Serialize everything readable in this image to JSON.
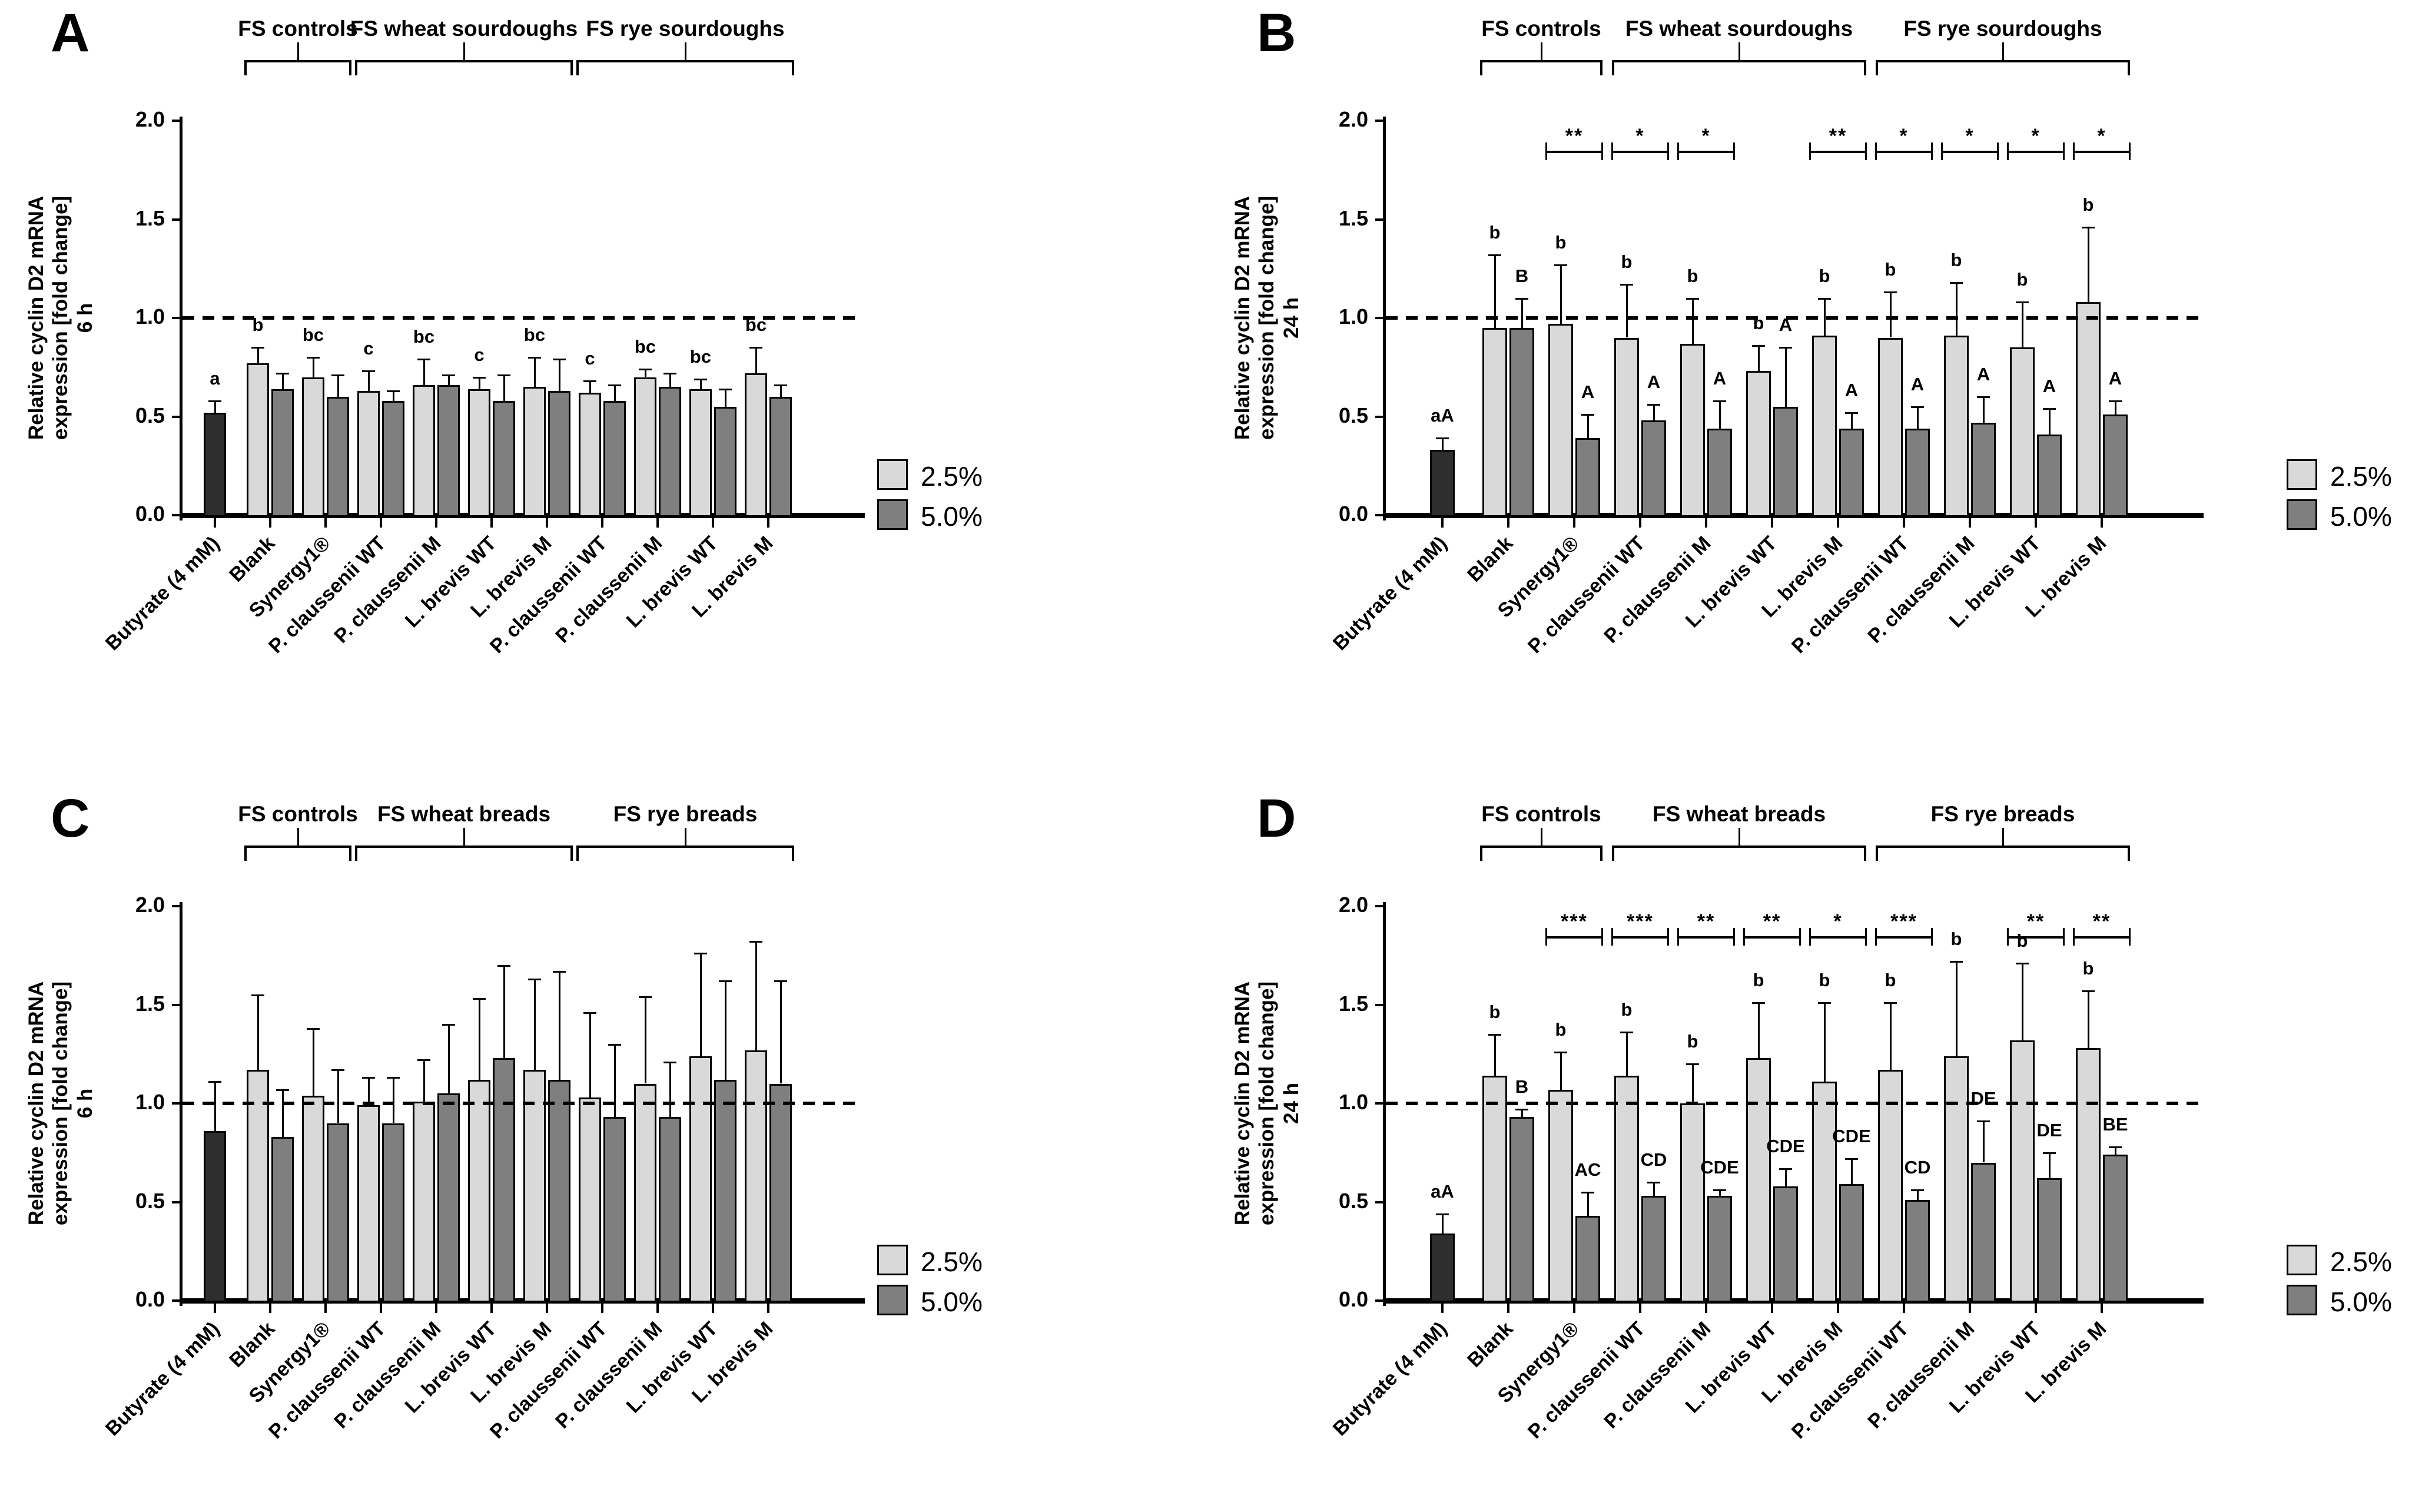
{
  "chart_data": {
    "type": "bar",
    "title": "",
    "ylabel_line1": "Relative cyclin D2 mRNA",
    "ylabel_line2": "expression [fold change]",
    "ylim": [
      0,
      2.0
    ],
    "ytick_labels": [
      "0.0",
      "0.5",
      "1.0",
      "1.5",
      "2.0"
    ],
    "ytick_values": [
      0.0,
      0.5,
      1.0,
      1.5,
      2.0
    ],
    "reference_line": 1.0,
    "grid": false,
    "legend": {
      "position": "right",
      "items": [
        {
          "label": "2.5%",
          "color": "#d9d9d9"
        },
        {
          "label": "5.0%",
          "color": "#7f7f7f"
        }
      ]
    },
    "colors": {
      "butyrate": "#2e2e2e",
      "light": "#d9d9d9",
      "dark": "#7f7f7f",
      "axis": "#000000"
    },
    "categories": [
      "Butyrate (4 mM)",
      "Blank",
      "Synergy1®",
      "P. claussenii WT",
      "P. claussenii M",
      "L. brevis WT",
      "L. brevis M",
      "P. claussenii WT",
      "P. claussenii M",
      "L. brevis WT",
      "L. brevis M"
    ],
    "panels": [
      {
        "id": "A",
        "time": "6 h",
        "group_titles": [
          {
            "label": "FS controls",
            "start": 1,
            "end": 2
          },
          {
            "label": "FS wheat sourdoughs",
            "start": 3,
            "end": 6
          },
          {
            "label": "FS rye sourdoughs",
            "start": 7,
            "end": 10
          }
        ],
        "groups": [
          {
            "bars": [
              {
                "s": "b",
                "v": 0.52,
                "e": 0.06,
                "letter": "a"
              }
            ]
          },
          {
            "bars": [
              {
                "s": "l",
                "v": 0.77,
                "e": 0.08,
                "letter": "b"
              },
              {
                "s": "d",
                "v": 0.64,
                "e": 0.08
              }
            ]
          },
          {
            "bars": [
              {
                "s": "l",
                "v": 0.7,
                "e": 0.1,
                "letter": "bc"
              },
              {
                "s": "d",
                "v": 0.6,
                "e": 0.11
              }
            ]
          },
          {
            "bars": [
              {
                "s": "l",
                "v": 0.63,
                "e": 0.1,
                "letter": "c"
              },
              {
                "s": "d",
                "v": 0.58,
                "e": 0.05
              }
            ]
          },
          {
            "bars": [
              {
                "s": "l",
                "v": 0.66,
                "e": 0.13,
                "letter": "bc"
              },
              {
                "s": "d",
                "v": 0.66,
                "e": 0.05
              }
            ]
          },
          {
            "bars": [
              {
                "s": "l",
                "v": 0.64,
                "e": 0.06,
                "letter": "c"
              },
              {
                "s": "d",
                "v": 0.58,
                "e": 0.13
              }
            ]
          },
          {
            "bars": [
              {
                "s": "l",
                "v": 0.65,
                "e": 0.15,
                "letter": "bc"
              },
              {
                "s": "d",
                "v": 0.63,
                "e": 0.16
              }
            ]
          },
          {
            "bars": [
              {
                "s": "l",
                "v": 0.62,
                "e": 0.06,
                "letter": "c"
              },
              {
                "s": "d",
                "v": 0.58,
                "e": 0.08
              }
            ]
          },
          {
            "bars": [
              {
                "s": "l",
                "v": 0.7,
                "e": 0.04,
                "letter": "bc"
              },
              {
                "s": "d",
                "v": 0.65,
                "e": 0.07
              }
            ]
          },
          {
            "bars": [
              {
                "s": "l",
                "v": 0.64,
                "e": 0.05,
                "letter": "bc"
              },
              {
                "s": "d",
                "v": 0.55,
                "e": 0.09
              }
            ]
          },
          {
            "bars": [
              {
                "s": "l",
                "v": 0.72,
                "e": 0.13,
                "letter": "bc"
              },
              {
                "s": "d",
                "v": 0.6,
                "e": 0.06
              }
            ]
          }
        ],
        "significance": []
      },
      {
        "id": "B",
        "time": "24 h",
        "group_titles": [
          {
            "label": "FS controls",
            "start": 1,
            "end": 2
          },
          {
            "label": "FS wheat sourdoughs",
            "start": 3,
            "end": 6
          },
          {
            "label": "FS rye sourdoughs",
            "start": 7,
            "end": 10
          }
        ],
        "groups": [
          {
            "bars": [
              {
                "s": "b",
                "v": 0.33,
                "e": 0.06,
                "letter": "aA"
              }
            ]
          },
          {
            "bars": [
              {
                "s": "l",
                "v": 0.95,
                "e": 0.37,
                "letter": "b"
              },
              {
                "s": "d",
                "v": 0.95,
                "e": 0.15,
                "letter": "B"
              }
            ]
          },
          {
            "bars": [
              {
                "s": "l",
                "v": 0.97,
                "e": 0.3,
                "letter": "b"
              },
              {
                "s": "d",
                "v": 0.39,
                "e": 0.12,
                "letter": "A"
              }
            ]
          },
          {
            "bars": [
              {
                "s": "l",
                "v": 0.9,
                "e": 0.27,
                "letter": "b"
              },
              {
                "s": "d",
                "v": 0.48,
                "e": 0.08,
                "letter": "A"
              }
            ]
          },
          {
            "bars": [
              {
                "s": "l",
                "v": 0.87,
                "e": 0.23,
                "letter": "b"
              },
              {
                "s": "d",
                "v": 0.44,
                "e": 0.14,
                "letter": "A"
              }
            ]
          },
          {
            "bars": [
              {
                "s": "l",
                "v": 0.73,
                "e": 0.13,
                "letter": "b"
              },
              {
                "s": "d",
                "v": 0.55,
                "e": 0.3,
                "letter": "A"
              }
            ]
          },
          {
            "bars": [
              {
                "s": "l",
                "v": 0.91,
                "e": 0.19,
                "letter": "b"
              },
              {
                "s": "d",
                "v": 0.44,
                "e": 0.08,
                "letter": "A"
              }
            ]
          },
          {
            "bars": [
              {
                "s": "l",
                "v": 0.9,
                "e": 0.23,
                "letter": "b"
              },
              {
                "s": "d",
                "v": 0.44,
                "e": 0.11,
                "letter": "A"
              }
            ]
          },
          {
            "bars": [
              {
                "s": "l",
                "v": 0.91,
                "e": 0.27,
                "letter": "b"
              },
              {
                "s": "d",
                "v": 0.47,
                "e": 0.13,
                "letter": "A"
              }
            ]
          },
          {
            "bars": [
              {
                "s": "l",
                "v": 0.85,
                "e": 0.23,
                "letter": "b"
              },
              {
                "s": "d",
                "v": 0.41,
                "e": 0.13,
                "letter": "A"
              }
            ]
          },
          {
            "bars": [
              {
                "s": "l",
                "v": 1.08,
                "e": 0.38,
                "letter": "b"
              },
              {
                "s": "d",
                "v": 0.51,
                "e": 0.07,
                "letter": "A"
              }
            ]
          }
        ],
        "significance": [
          {
            "group": 2,
            "stars": "**"
          },
          {
            "group": 3,
            "stars": "*"
          },
          {
            "group": 4,
            "stars": "*"
          },
          {
            "group": 6,
            "stars": "**"
          },
          {
            "group": 7,
            "stars": "*"
          },
          {
            "group": 8,
            "stars": "*"
          },
          {
            "group": 9,
            "stars": "*"
          },
          {
            "group": 10,
            "stars": "*"
          }
        ]
      },
      {
        "id": "C",
        "time": "6 h",
        "group_titles": [
          {
            "label": "FS controls",
            "start": 1,
            "end": 2
          },
          {
            "label": "FS wheat breads",
            "start": 3,
            "end": 6
          },
          {
            "label": "FS rye breads",
            "start": 7,
            "end": 10
          }
        ],
        "groups": [
          {
            "bars": [
              {
                "s": "b",
                "v": 0.86,
                "e": 0.25
              }
            ]
          },
          {
            "bars": [
              {
                "s": "l",
                "v": 1.17,
                "e": 0.38
              },
              {
                "s": "d",
                "v": 0.83,
                "e": 0.24
              }
            ]
          },
          {
            "bars": [
              {
                "s": "l",
                "v": 1.04,
                "e": 0.34
              },
              {
                "s": "d",
                "v": 0.9,
                "e": 0.27
              }
            ]
          },
          {
            "bars": [
              {
                "s": "l",
                "v": 0.99,
                "e": 0.14
              },
              {
                "s": "d",
                "v": 0.9,
                "e": 0.23
              }
            ]
          },
          {
            "bars": [
              {
                "s": "l",
                "v": 1.01,
                "e": 0.21
              },
              {
                "s": "d",
                "v": 1.05,
                "e": 0.35
              }
            ]
          },
          {
            "bars": [
              {
                "s": "l",
                "v": 1.12,
                "e": 0.41
              },
              {
                "s": "d",
                "v": 1.23,
                "e": 0.47
              }
            ]
          },
          {
            "bars": [
              {
                "s": "l",
                "v": 1.17,
                "e": 0.46
              },
              {
                "s": "d",
                "v": 1.12,
                "e": 0.55
              }
            ]
          },
          {
            "bars": [
              {
                "s": "l",
                "v": 1.03,
                "e": 0.43
              },
              {
                "s": "d",
                "v": 0.93,
                "e": 0.37
              }
            ]
          },
          {
            "bars": [
              {
                "s": "l",
                "v": 1.1,
                "e": 0.44
              },
              {
                "s": "d",
                "v": 0.93,
                "e": 0.28
              }
            ]
          },
          {
            "bars": [
              {
                "s": "l",
                "v": 1.24,
                "e": 0.52
              },
              {
                "s": "d",
                "v": 1.12,
                "e": 0.5
              }
            ]
          },
          {
            "bars": [
              {
                "s": "l",
                "v": 1.27,
                "e": 0.55
              },
              {
                "s": "d",
                "v": 1.1,
                "e": 0.52
              }
            ]
          }
        ],
        "significance": []
      },
      {
        "id": "D",
        "time": "24 h",
        "group_titles": [
          {
            "label": "FS controls",
            "start": 1,
            "end": 2
          },
          {
            "label": "FS wheat breads",
            "start": 3,
            "end": 6
          },
          {
            "label": "FS rye breads",
            "start": 7,
            "end": 10
          }
        ],
        "groups": [
          {
            "bars": [
              {
                "s": "b",
                "v": 0.34,
                "e": 0.1,
                "letter": "aA"
              }
            ]
          },
          {
            "bars": [
              {
                "s": "l",
                "v": 1.14,
                "e": 0.21,
                "letter": "b"
              },
              {
                "s": "d",
                "v": 0.93,
                "e": 0.04,
                "letter": "B"
              }
            ]
          },
          {
            "bars": [
              {
                "s": "l",
                "v": 1.07,
                "e": 0.19,
                "letter": "b"
              },
              {
                "s": "d",
                "v": 0.43,
                "e": 0.12,
                "letter": "AC"
              }
            ]
          },
          {
            "bars": [
              {
                "s": "l",
                "v": 1.14,
                "e": 0.22,
                "letter": "b"
              },
              {
                "s": "d",
                "v": 0.53,
                "e": 0.07,
                "letter": "CD"
              }
            ]
          },
          {
            "bars": [
              {
                "s": "l",
                "v": 1.0,
                "e": 0.2,
                "letter": "b"
              },
              {
                "s": "d",
                "v": 0.53,
                "e": 0.03,
                "letter": "CDE"
              }
            ]
          },
          {
            "bars": [
              {
                "s": "l",
                "v": 1.23,
                "e": 0.28,
                "letter": "b"
              },
              {
                "s": "d",
                "v": 0.58,
                "e": 0.09,
                "letter": "CDE"
              }
            ]
          },
          {
            "bars": [
              {
                "s": "l",
                "v": 1.11,
                "e": 0.4,
                "letter": "b"
              },
              {
                "s": "d",
                "v": 0.59,
                "e": 0.13,
                "letter": "CDE"
              }
            ]
          },
          {
            "bars": [
              {
                "s": "l",
                "v": 1.17,
                "e": 0.34,
                "letter": "b"
              },
              {
                "s": "d",
                "v": 0.51,
                "e": 0.05,
                "letter": "CD"
              }
            ]
          },
          {
            "bars": [
              {
                "s": "l",
                "v": 1.24,
                "e": 0.48,
                "letter": "b"
              },
              {
                "s": "d",
                "v": 0.7,
                "e": 0.21,
                "letter": "DE"
              }
            ]
          },
          {
            "bars": [
              {
                "s": "l",
                "v": 1.32,
                "e": 0.39,
                "letter": "b"
              },
              {
                "s": "d",
                "v": 0.62,
                "e": 0.13,
                "letter": "DE"
              }
            ]
          },
          {
            "bars": [
              {
                "s": "l",
                "v": 1.28,
                "e": 0.29,
                "letter": "b"
              },
              {
                "s": "d",
                "v": 0.74,
                "e": 0.04,
                "letter": "BE"
              }
            ]
          }
        ],
        "significance": [
          {
            "group": 2,
            "stars": "***"
          },
          {
            "group": 3,
            "stars": "***"
          },
          {
            "group": 4,
            "stars": "**"
          },
          {
            "group": 5,
            "stars": "**"
          },
          {
            "group": 6,
            "stars": "*"
          },
          {
            "group": 7,
            "stars": "***"
          },
          {
            "group": 9,
            "stars": "**"
          },
          {
            "group": 10,
            "stars": "**"
          }
        ]
      }
    ]
  }
}
